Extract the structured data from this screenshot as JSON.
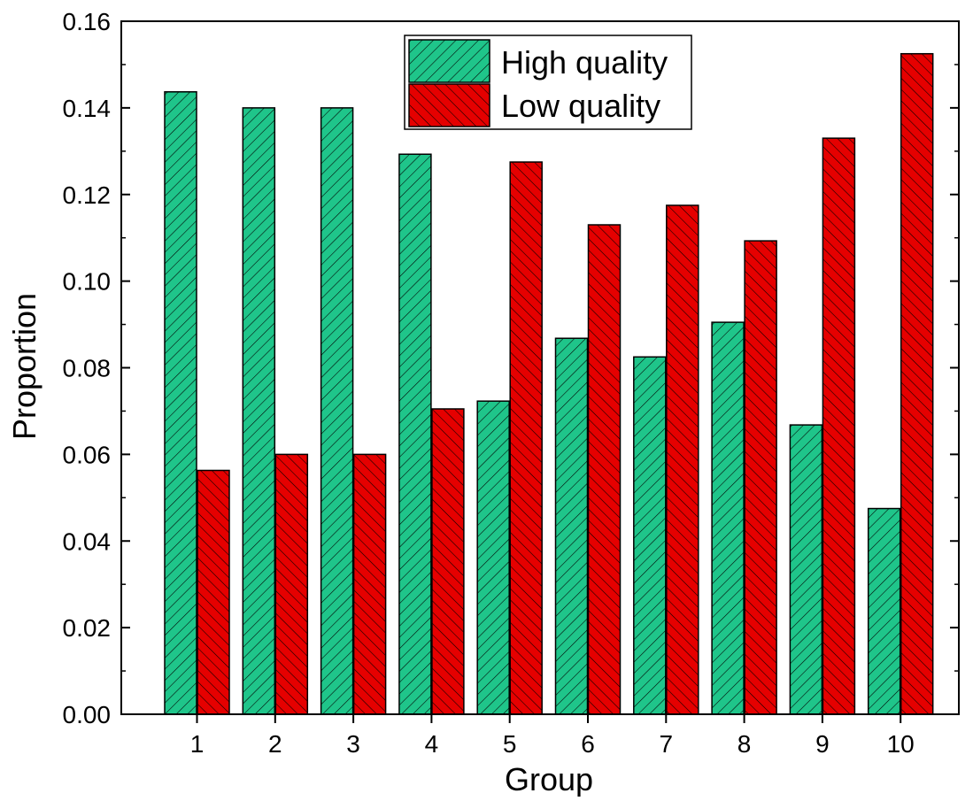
{
  "colors": {
    "high": "#1fc58a",
    "low": "#e50000",
    "hatch": "#000000",
    "axis": "#000000"
  },
  "chart_data": {
    "type": "bar",
    "title": "",
    "xlabel": "Group",
    "ylabel": "Proportion",
    "categories": [
      "1",
      "2",
      "3",
      "4",
      "5",
      "6",
      "7",
      "8",
      "9",
      "10"
    ],
    "series": [
      {
        "name": "High quality",
        "values": [
          0.1437,
          0.14,
          0.14,
          0.1293,
          0.0723,
          0.0868,
          0.0825,
          0.0905,
          0.0668,
          0.0475
        ]
      },
      {
        "name": "Low quality",
        "values": [
          0.0563,
          0.06,
          0.06,
          0.0705,
          0.1275,
          0.113,
          0.1175,
          0.1093,
          0.133,
          0.1525
        ]
      }
    ],
    "ylim": [
      0,
      0.16
    ],
    "yticks": [
      "0.00",
      "0.02",
      "0.04",
      "0.06",
      "0.08",
      "0.10",
      "0.12",
      "0.14",
      "0.16"
    ],
    "grid": false,
    "legend_position": "top-center"
  }
}
